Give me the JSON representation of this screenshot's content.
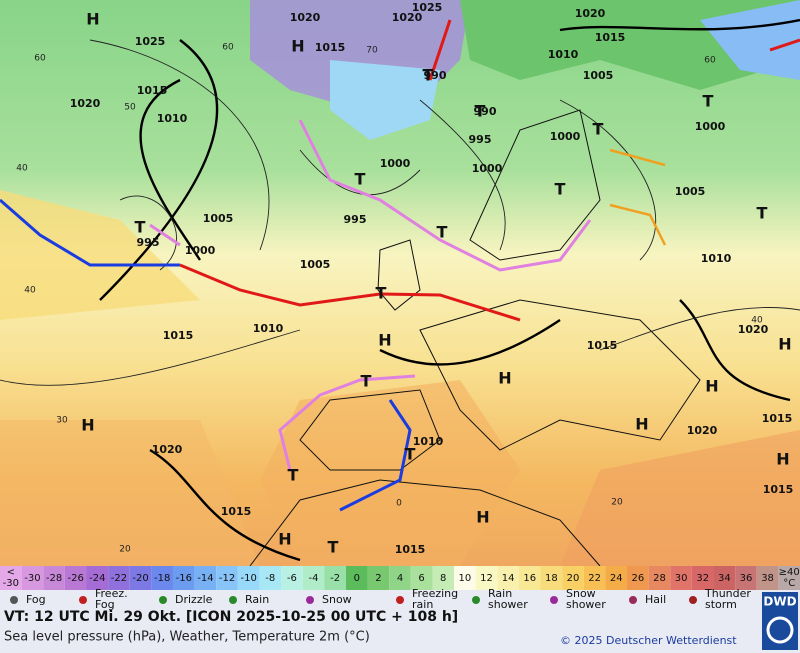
{
  "map": {
    "pressure_labels": [
      "1020",
      "1020",
      "1025",
      "1020",
      "1025",
      "1015",
      "1015",
      "1010",
      "1005",
      "1020",
      "1015",
      "1010",
      "990",
      "990",
      "995",
      "1000",
      "1000",
      "1000",
      "995",
      "1005",
      "1000",
      "995",
      "1005",
      "1005",
      "1010",
      "1000",
      "1010",
      "1015",
      "1015",
      "1020",
      "1020",
      "1015",
      "1015",
      "1020",
      "1015",
      "1015",
      "1010"
    ],
    "centers": [
      "H",
      "H",
      "T",
      "T",
      "T",
      "T",
      "T",
      "T",
      "T",
      "T",
      "H",
      "H",
      "H",
      "H",
      "H",
      "T",
      "T",
      "T",
      "H",
      "H",
      "T",
      "T",
      "T",
      "H",
      "H"
    ],
    "temperature_labels": [
      "60",
      "50",
      "40",
      "40",
      "30",
      "20",
      "60",
      "70",
      "60",
      "40",
      "20",
      "0"
    ]
  },
  "colorbar": {
    "first": [
      "<",
      "-30"
    ],
    "labels": [
      "-30",
      "-28",
      "-26",
      "-24",
      "-22",
      "-20",
      "-18",
      "-16",
      "-14",
      "-12",
      "-10",
      "-8",
      "-6",
      "-4",
      "-2",
      "0",
      "2",
      "4",
      "6",
      "8",
      "10",
      "12",
      "14",
      "16",
      "18",
      "20",
      "22",
      "24",
      "26",
      "28",
      "30",
      "32",
      "34",
      "36",
      "38"
    ],
    "last": [
      "≥40",
      "°C"
    ],
    "colors": [
      "#e4a8e8",
      "#d898e0",
      "#c888d8",
      "#b878d4",
      "#a46cd4",
      "#9070dc",
      "#7c78e4",
      "#6c88ec",
      "#6c9cf0",
      "#78b0f4",
      "#88c4f8",
      "#98d8f8",
      "#a8e8f4",
      "#b8f0e4",
      "#b0ecc8",
      "#98e0a8",
      "#5cbc5c",
      "#78c870",
      "#90d488",
      "#a8e09c",
      "#c4ecb4",
      "#fcfce8",
      "#f8f8c4",
      "#f8f0ac",
      "#f8e894",
      "#f8dc7c",
      "#f8d064",
      "#f8c054",
      "#f4ac48",
      "#f09850",
      "#e88860",
      "#e07468",
      "#d86868",
      "#cc6464",
      "#c87474",
      "#c09488",
      "#b8a8a8"
    ]
  },
  "legend": [
    "Fog",
    "Freez. Fog",
    "Drizzle",
    "Rain",
    "Snow",
    "Freezing rain",
    "Rain shower",
    "Snow shower",
    "Hail",
    "Thunder storm"
  ],
  "footer": {
    "valid": "VT: 12 UTC Mi.  29 Okt. [ICON 2025-10-25  00 UTC + 108 h]",
    "description": "Sea level pressure (hPa), Weather, Temperature 2m (°C)",
    "copyright": "© 2025 Deutscher Wetterdienst",
    "logo": "DWD"
  }
}
